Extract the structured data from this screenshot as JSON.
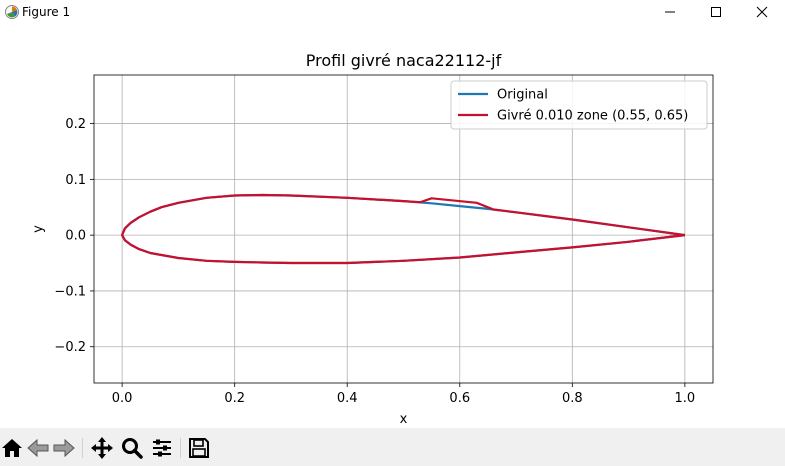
{
  "window": {
    "title": "Figure 1"
  },
  "toolbar": {
    "tools": [
      "home-icon",
      "back-arrow-icon",
      "forward-arrow-icon",
      "pan-icon",
      "zoom-icon",
      "subplots-icon",
      "save-icon"
    ]
  },
  "chart_data": {
    "type": "line",
    "title": "Profil givré naca22112-jf",
    "xlabel": "x",
    "ylabel": "y",
    "xlim": [
      -0.05,
      1.05
    ],
    "ylim": [
      -0.265,
      0.287
    ],
    "xticks": [
      "0.0",
      "0.2",
      "0.4",
      "0.6",
      "0.8",
      "1.0"
    ],
    "xtick_values": [
      0.0,
      0.2,
      0.4,
      0.6,
      0.8,
      1.0
    ],
    "yticks": [
      "−0.2",
      "−0.1",
      "0.0",
      "0.1",
      "0.2"
    ],
    "ytick_values": [
      -0.2,
      -0.1,
      0.0,
      0.1,
      0.2
    ],
    "grid": true,
    "legend_position": "top-right",
    "series": [
      {
        "name": "Original",
        "color": "#1f77b4",
        "x": [
          1.0,
          0.9,
          0.8,
          0.7,
          0.65,
          0.6,
          0.55,
          0.5,
          0.4,
          0.3,
          0.25,
          0.2,
          0.15,
          0.1,
          0.07,
          0.05,
          0.03,
          0.015,
          0.005,
          0.0,
          0.005,
          0.015,
          0.03,
          0.05,
          0.1,
          0.15,
          0.2,
          0.25,
          0.3,
          0.35,
          0.4,
          0.5,
          0.6,
          0.7,
          0.8,
          0.9,
          1.0
        ],
        "y": [
          0.0,
          0.014,
          0.028,
          0.041,
          0.047,
          0.052,
          0.057,
          0.061,
          0.067,
          0.071,
          0.072,
          0.071,
          0.067,
          0.058,
          0.05,
          0.042,
          0.032,
          0.022,
          0.012,
          0.0,
          -0.009,
          -0.017,
          -0.025,
          -0.032,
          -0.041,
          -0.046,
          -0.048,
          -0.049,
          -0.05,
          -0.05,
          -0.05,
          -0.046,
          -0.04,
          -0.031,
          -0.022,
          -0.012,
          0.0
        ]
      },
      {
        "name": "Givré 0.010 zone (0.55, 0.65)",
        "color": "#c8102e",
        "x": [
          1.0,
          0.9,
          0.8,
          0.7,
          0.66,
          0.63,
          0.55,
          0.53,
          0.5,
          0.4,
          0.3,
          0.25,
          0.2,
          0.15,
          0.1,
          0.07,
          0.05,
          0.03,
          0.015,
          0.005,
          0.0,
          0.005,
          0.015,
          0.03,
          0.05,
          0.1,
          0.15,
          0.2,
          0.25,
          0.3,
          0.35,
          0.4,
          0.5,
          0.6,
          0.7,
          0.8,
          0.9,
          1.0
        ],
        "y": [
          0.0,
          0.014,
          0.028,
          0.041,
          0.046,
          0.058,
          0.066,
          0.059,
          0.061,
          0.067,
          0.071,
          0.072,
          0.071,
          0.067,
          0.058,
          0.05,
          0.042,
          0.032,
          0.022,
          0.012,
          0.0,
          -0.009,
          -0.017,
          -0.025,
          -0.032,
          -0.041,
          -0.046,
          -0.048,
          -0.049,
          -0.05,
          -0.05,
          -0.05,
          -0.046,
          -0.04,
          -0.031,
          -0.022,
          -0.012,
          0.0
        ]
      }
    ]
  }
}
